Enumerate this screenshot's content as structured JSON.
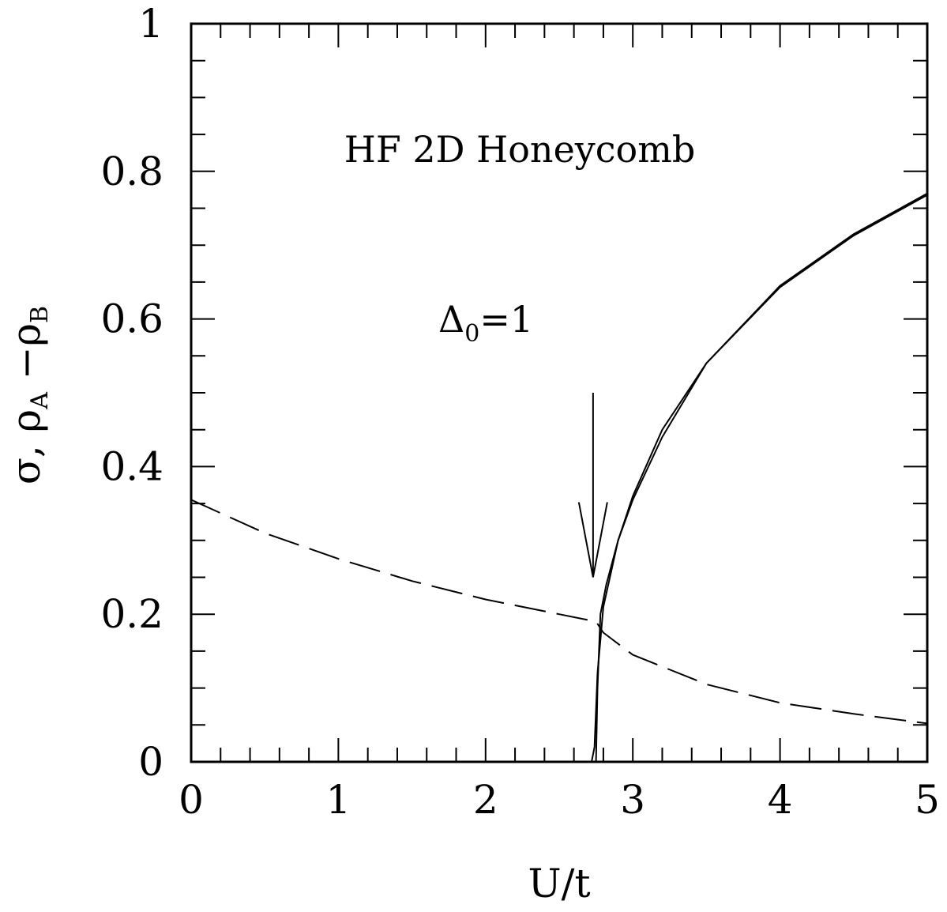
{
  "chart_data": {
    "type": "line",
    "title": "",
    "xlabel": "U/t",
    "ylabel": {
      "main": "σ,  ρ",
      "sub_a": "A",
      "mid": " −ρ",
      "sub_b": "B"
    },
    "xlim": [
      0,
      5
    ],
    "ylim": [
      0,
      1
    ],
    "x_ticks": [
      0,
      1,
      2,
      3,
      4,
      5
    ],
    "x_tick_labels": [
      "0",
      "1",
      "2",
      "3",
      "4",
      "5"
    ],
    "y_ticks": [
      0,
      0.2,
      0.4,
      0.6,
      0.8,
      1
    ],
    "y_tick_labels": [
      "0",
      "0.2",
      "0.4",
      "0.6",
      "0.8",
      "1"
    ],
    "grid": false,
    "annotations": {
      "model": "HF 2D Honeycomb",
      "param": {
        "symbol": "Δ",
        "sub": "0",
        "rest": "=1"
      }
    },
    "arrow": {
      "x": 2.73,
      "y_top": 0.5,
      "y_tip": 0.25
    },
    "series": [
      {
        "style": "solid",
        "x": [
          2.72,
          2.74,
          2.76,
          2.8,
          2.9,
          3.0,
          3.2,
          3.5,
          4.0,
          4.5,
          5.0
        ],
        "y": [
          0.0,
          0.02,
          0.12,
          0.21,
          0.3,
          0.36,
          0.45,
          0.54,
          0.645,
          0.715,
          0.77
        ]
      },
      {
        "style": "solid",
        "x": [
          2.75,
          2.76,
          2.78,
          2.82,
          2.9,
          3.0,
          3.2,
          3.5,
          4.0,
          4.5,
          5.0
        ],
        "y": [
          0.0,
          0.1,
          0.2,
          0.24,
          0.3,
          0.355,
          0.44,
          0.54,
          0.643,
          0.713,
          0.768
        ]
      },
      {
        "style": "dashed",
        "x": [
          0,
          0.5,
          1.0,
          1.5,
          2.0,
          2.5,
          2.75,
          2.8,
          3.0,
          3.5,
          4.0,
          4.5,
          5.0
        ],
        "y": [
          0.355,
          0.31,
          0.275,
          0.245,
          0.22,
          0.2,
          0.19,
          0.175,
          0.145,
          0.105,
          0.08,
          0.065,
          0.052
        ]
      }
    ]
  }
}
